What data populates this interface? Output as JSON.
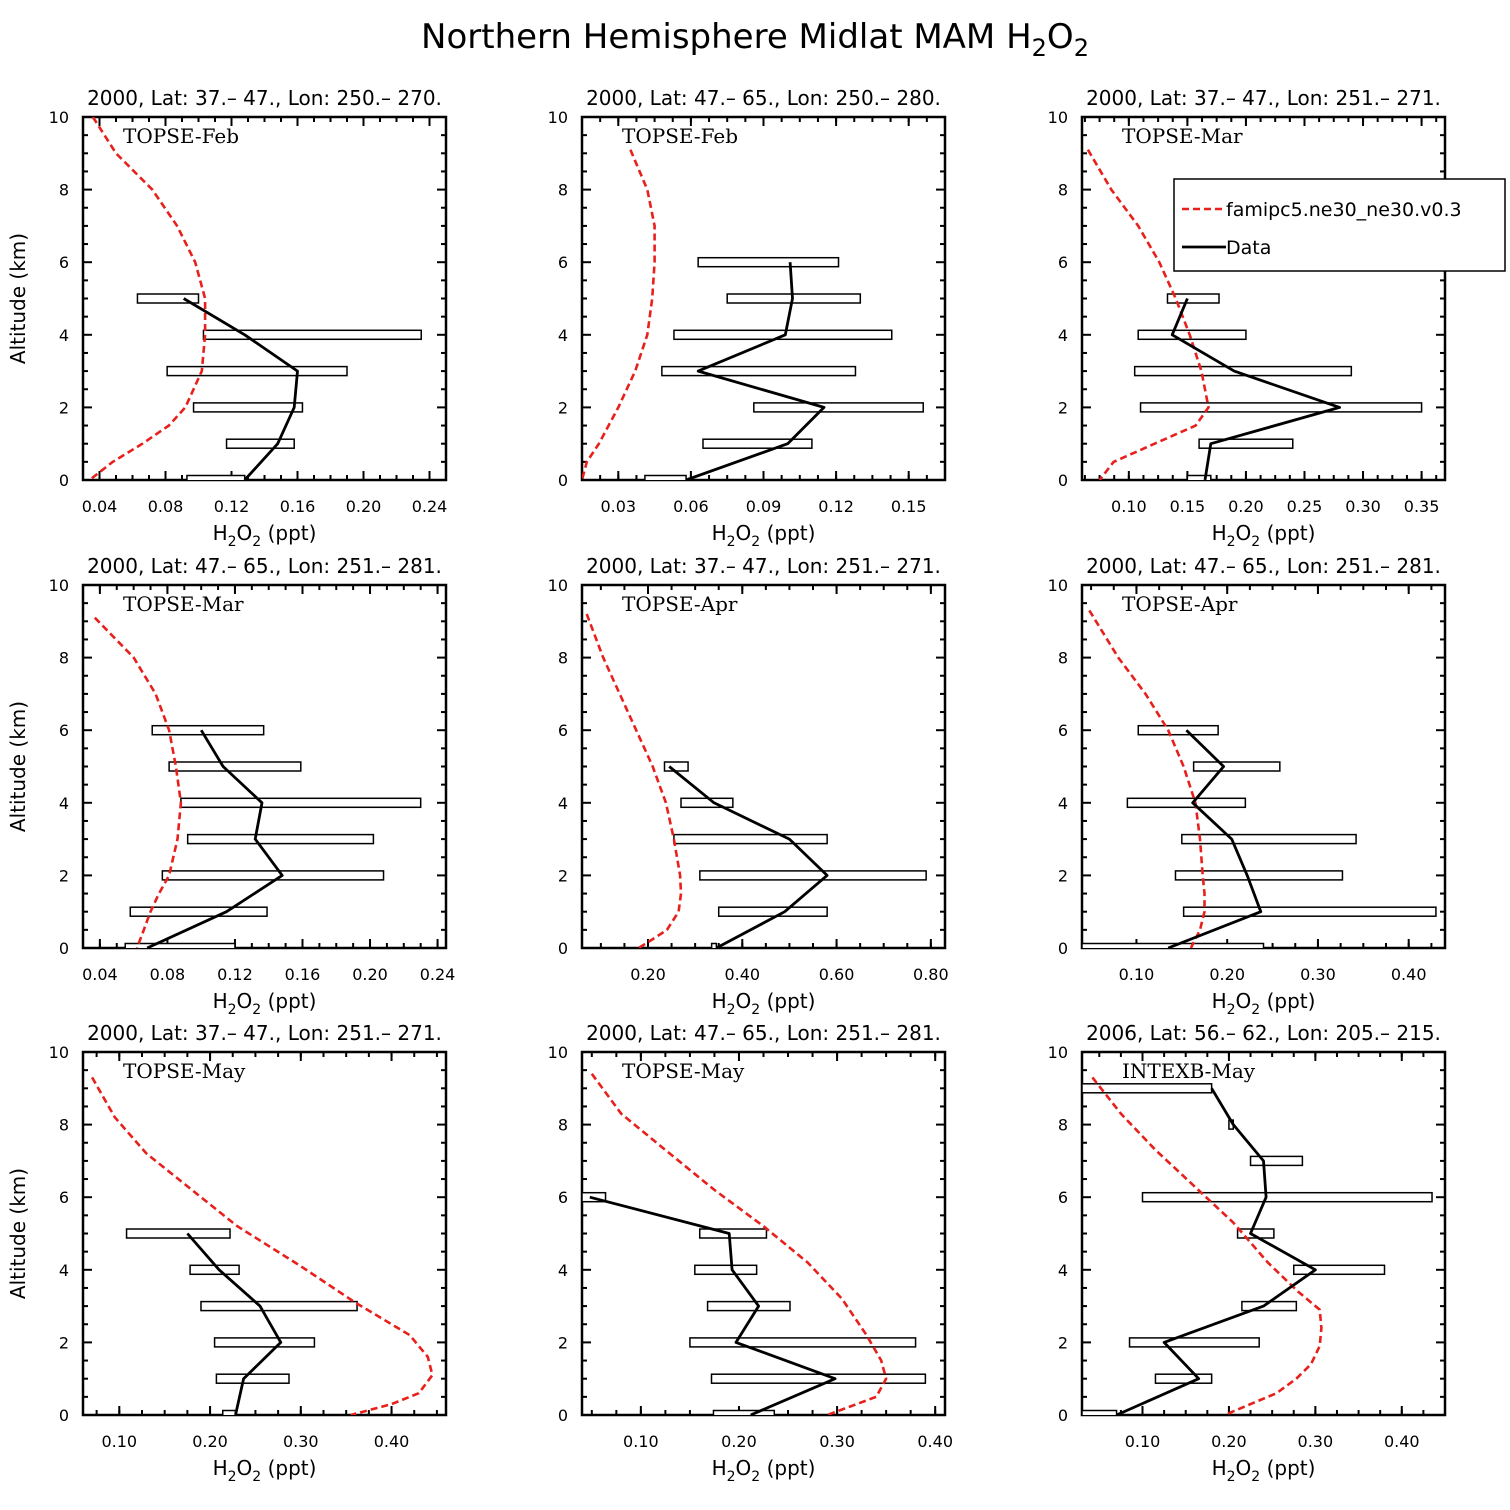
{
  "figure": {
    "title_main": "Northern Hemisphere Midlat MAM H",
    "title_sub1": "2",
    "title_mid": "O",
    "title_sub2": "2"
  },
  "colors": {
    "model": "#e8201c",
    "data": "#000000",
    "box_fill": "#ffffff"
  },
  "legend": {
    "panel_index": 2,
    "model_label": "famipc5.ne30_ne30.v0.3",
    "data_label": "Data"
  },
  "chart_data": [
    {
      "type": "line",
      "title": "2000, Lat: 37.– 47., Lon: 250.– 270.",
      "campaign": "TOPSE-Feb",
      "xlabel_main": "H",
      "xlabel_sub1": "2",
      "xlabel_mid": "O",
      "xlabel_sub2": "2",
      "xlabel_tail": " (ppt)",
      "ylabel": "Altitude (km)",
      "xlim": [
        0.03,
        0.25
      ],
      "ylim": [
        0,
        10
      ],
      "xticks": [
        0.04,
        0.08,
        0.12,
        0.16,
        0.2,
        0.24
      ],
      "xtick_labels": [
        "0.04",
        "0.08",
        "0.12",
        "0.16",
        "0.20",
        "0.24"
      ],
      "yticks": [
        0,
        2,
        4,
        6,
        8,
        10
      ],
      "ytick_labels": [
        "0",
        "2",
        "4",
        "6",
        "8",
        "10"
      ],
      "model": {
        "x": [
          0.036,
          0.05,
          0.072,
          0.087,
          0.098,
          0.104,
          0.104,
          0.102,
          0.092,
          0.082,
          0.066,
          0.048,
          0.034
        ],
        "y": [
          10,
          9,
          8,
          7,
          6,
          5,
          4,
          3,
          2,
          1.5,
          1,
          0.5,
          0
        ]
      },
      "data": {
        "altitude": [
          0,
          1,
          2,
          3,
          4,
          5
        ],
        "mean": [
          0.128,
          0.148,
          0.158,
          0.16,
          0.128,
          0.091
        ],
        "low": [
          0.093,
          0.117,
          0.097,
          0.081,
          0.103,
          0.063
        ],
        "high": [
          0.128,
          0.158,
          0.163,
          0.19,
          0.235,
          0.1
        ]
      }
    },
    {
      "type": "line",
      "title": "2000, Lat: 47.– 65., Lon: 250.– 280.",
      "campaign": "TOPSE-Feb",
      "xlabel_main": "H",
      "xlabel_sub1": "2",
      "xlabel_mid": "O",
      "xlabel_sub2": "2",
      "xlabel_tail": " (ppt)",
      "ylabel": "",
      "xlim": [
        0.015,
        0.165
      ],
      "ylim": [
        0,
        10
      ],
      "xticks": [
        0.03,
        0.06,
        0.09,
        0.12,
        0.15
      ],
      "xtick_labels": [
        "0.03",
        "0.06",
        "0.09",
        "0.12",
        "0.15"
      ],
      "yticks": [
        0,
        2,
        4,
        6,
        8,
        10
      ],
      "ytick_labels": [
        "0",
        "2",
        "4",
        "6",
        "8",
        "10"
      ],
      "model": {
        "x": [
          0.035,
          0.042,
          0.045,
          0.045,
          0.044,
          0.042,
          0.037,
          0.03,
          0.022,
          0.017,
          0.015
        ],
        "y": [
          9.1,
          8,
          7,
          6,
          5,
          4,
          3,
          2,
          1,
          0.5,
          0
        ]
      },
      "data": {
        "altitude": [
          0,
          1,
          2,
          3,
          4,
          5,
          6
        ],
        "mean": [
          0.058,
          0.1,
          0.115,
          0.063,
          0.099,
          0.102,
          0.101
        ],
        "low": [
          0.041,
          0.065,
          0.086,
          0.048,
          0.053,
          0.075,
          0.063
        ],
        "high": [
          0.058,
          0.11,
          0.156,
          0.128,
          0.143,
          0.13,
          0.121
        ]
      }
    },
    {
      "type": "line",
      "title": "2000, Lat: 37.– 47., Lon: 251.– 271.",
      "campaign": "TOPSE-Mar",
      "xlabel_main": "H",
      "xlabel_sub1": "2",
      "xlabel_mid": "O",
      "xlabel_sub2": "2",
      "xlabel_tail": " (ppt)",
      "ylabel": "",
      "xlim": [
        0.06,
        0.37
      ],
      "ylim": [
        0,
        10
      ],
      "xticks": [
        0.1,
        0.15,
        0.2,
        0.25,
        0.3,
        0.35
      ],
      "xtick_labels": [
        "0.10",
        "0.15",
        "0.20",
        "0.25",
        "0.30",
        "0.35"
      ],
      "yticks": [
        0,
        2,
        4,
        6,
        8,
        10
      ],
      "ytick_labels": [
        "0",
        "2",
        "4",
        "6",
        "8",
        "10"
      ],
      "model": {
        "x": [
          0.065,
          0.085,
          0.108,
          0.126,
          0.14,
          0.152,
          0.162,
          0.168,
          0.157,
          0.122,
          0.087,
          0.075
        ],
        "y": [
          9.1,
          8,
          7,
          6,
          5,
          4,
          3,
          2,
          1.5,
          1,
          0.5,
          0
        ]
      },
      "data": {
        "altitude": [
          0,
          1,
          2,
          3,
          4,
          5
        ],
        "mean": [
          0.165,
          0.17,
          0.28,
          0.19,
          0.137,
          0.15
        ],
        "low": [
          0.15,
          0.16,
          0.11,
          0.105,
          0.108,
          0.133
        ],
        "high": [
          0.17,
          0.24,
          0.35,
          0.29,
          0.2,
          0.177
        ]
      }
    },
    {
      "type": "line",
      "title": "2000, Lat: 47.– 65., Lon: 251.– 281.",
      "campaign": "TOPSE-Mar",
      "xlabel_main": "H",
      "xlabel_sub1": "2",
      "xlabel_mid": "O",
      "xlabel_sub2": "2",
      "xlabel_tail": " (ppt)",
      "ylabel": "Altitude (km)",
      "xlim": [
        0.03,
        0.245
      ],
      "ylim": [
        0,
        10
      ],
      "xticks": [
        0.04,
        0.08,
        0.12,
        0.16,
        0.2,
        0.24
      ],
      "xtick_labels": [
        "0.04",
        "0.08",
        "0.12",
        "0.16",
        "0.20",
        "0.24"
      ],
      "yticks": [
        0,
        2,
        4,
        6,
        8,
        10
      ],
      "ytick_labels": [
        "0",
        "2",
        "4",
        "6",
        "8",
        "10"
      ],
      "model": {
        "x": [
          0.037,
          0.06,
          0.073,
          0.081,
          0.085,
          0.088,
          0.086,
          0.081,
          0.075,
          0.07,
          0.066,
          0.062
        ],
        "y": [
          9.1,
          8,
          7,
          6,
          5,
          4,
          3,
          2,
          1.5,
          1,
          0.5,
          0
        ]
      },
      "data": {
        "altitude": [
          0,
          1,
          2,
          3,
          4,
          5,
          6
        ],
        "mean": [
          0.068,
          0.115,
          0.148,
          0.132,
          0.136,
          0.113,
          0.1
        ],
        "low": [
          0.055,
          0.058,
          0.077,
          0.092,
          0.088,
          0.081,
          0.071
        ],
        "high": [
          0.12,
          0.139,
          0.208,
          0.202,
          0.23,
          0.159,
          0.137
        ]
      }
    },
    {
      "type": "line",
      "title": "2000, Lat: 37.– 47., Lon: 251.– 271.",
      "campaign": "TOPSE-Apr",
      "xlabel_main": "H",
      "xlabel_sub1": "2",
      "xlabel_mid": "O",
      "xlabel_sub2": "2",
      "xlabel_tail": " (ppt)",
      "ylabel": "",
      "xlim": [
        0.06,
        0.83
      ],
      "ylim": [
        0,
        10
      ],
      "xticks": [
        0.2,
        0.4,
        0.6,
        0.8
      ],
      "xtick_labels": [
        "0.20",
        "0.40",
        "0.60",
        "0.80"
      ],
      "yticks": [
        0,
        2,
        4,
        6,
        8,
        10
      ],
      "ytick_labels": [
        "0",
        "2",
        "4",
        "6",
        "8",
        "10"
      ],
      "model": {
        "x": [
          0.07,
          0.105,
          0.14,
          0.175,
          0.21,
          0.238,
          0.255,
          0.268,
          0.27,
          0.265,
          0.24,
          0.205,
          0.18
        ],
        "y": [
          9.2,
          8,
          7,
          6,
          5,
          4,
          3,
          2,
          1.5,
          1,
          0.5,
          0.2,
          0
        ]
      },
      "data": {
        "altitude": [
          0,
          1,
          2,
          3,
          4,
          5
        ],
        "mean": [
          0.345,
          0.49,
          0.58,
          0.5,
          0.34,
          0.245
        ],
        "low": [
          0.335,
          0.35,
          0.31,
          0.255,
          0.27,
          0.235
        ],
        "high": [
          0.345,
          0.58,
          0.79,
          0.58,
          0.38,
          0.285
        ]
      }
    },
    {
      "type": "line",
      "title": "2000, Lat: 47.– 65., Lon: 251.– 281.",
      "campaign": "TOPSE-Apr",
      "xlabel_main": "H",
      "xlabel_sub1": "2",
      "xlabel_mid": "O",
      "xlabel_sub2": "2",
      "xlabel_tail": " (ppt)",
      "ylabel": "",
      "xlim": [
        0.04,
        0.44
      ],
      "ylim": [
        0,
        10
      ],
      "xticks": [
        0.1,
        0.2,
        0.3,
        0.4
      ],
      "xtick_labels": [
        "0.10",
        "0.20",
        "0.30",
        "0.40"
      ],
      "yticks": [
        0,
        2,
        4,
        6,
        8,
        10
      ],
      "ytick_labels": [
        "0",
        "2",
        "4",
        "6",
        "8",
        "10"
      ],
      "model": {
        "x": [
          0.048,
          0.08,
          0.11,
          0.135,
          0.152,
          0.165,
          0.17,
          0.173,
          0.175,
          0.175,
          0.17,
          0.16
        ],
        "y": [
          9.3,
          8,
          7,
          6,
          5,
          4,
          3,
          2,
          1.5,
          1,
          0.5,
          0
        ]
      },
      "data": {
        "altitude": [
          0,
          1,
          2,
          3,
          4,
          5,
          6
        ],
        "mean": [
          0.135,
          0.237,
          0.222,
          0.205,
          0.162,
          0.196,
          0.155
        ],
        "low": [
          0.04,
          0.152,
          0.143,
          0.15,
          0.09,
          0.163,
          0.102
        ],
        "high": [
          0.24,
          0.43,
          0.327,
          0.342,
          0.22,
          0.258,
          0.19
        ]
      }
    },
    {
      "type": "line",
      "title": "2000, Lat: 37.– 47., Lon: 251.– 271.",
      "campaign": "TOPSE-May",
      "xlabel_main": "H",
      "xlabel_sub1": "2",
      "xlabel_mid": "O",
      "xlabel_sub2": "2",
      "xlabel_tail": " (ppt)",
      "ylabel": "Altitude (km)",
      "xlim": [
        0.06,
        0.46
      ],
      "ylim": [
        0,
        10
      ],
      "xticks": [
        0.1,
        0.2,
        0.3,
        0.4
      ],
      "xtick_labels": [
        "0.10",
        "0.20",
        "0.30",
        "0.40"
      ],
      "yticks": [
        0,
        2,
        4,
        6,
        8,
        10
      ],
      "ytick_labels": [
        "0",
        "2",
        "4",
        "6",
        "8",
        "10"
      ],
      "model": {
        "x": [
          0.07,
          0.095,
          0.13,
          0.18,
          0.23,
          0.3,
          0.36,
          0.42,
          0.44,
          0.445,
          0.43,
          0.4,
          0.355
        ],
        "y": [
          9.3,
          8.2,
          7.2,
          6.2,
          5.2,
          4.1,
          3.1,
          2.2,
          1.6,
          1.1,
          0.6,
          0.3,
          0
        ]
      },
      "data": {
        "altitude": [
          0,
          1,
          2,
          3,
          4,
          5
        ],
        "mean": [
          0.228,
          0.237,
          0.278,
          0.255,
          0.21,
          0.175
        ],
        "low": [
          0.214,
          0.207,
          0.205,
          0.19,
          0.178,
          0.108
        ],
        "high": [
          0.228,
          0.287,
          0.315,
          0.362,
          0.232,
          0.222
        ]
      }
    },
    {
      "type": "line",
      "title": "2000, Lat: 47.– 65., Lon: 251.– 281.",
      "campaign": "TOPSE-May",
      "xlabel_main": "H",
      "xlabel_sub1": "2",
      "xlabel_mid": "O",
      "xlabel_sub2": "2",
      "xlabel_tail": " (ppt)",
      "ylabel": "",
      "xlim": [
        0.04,
        0.41
      ],
      "ylim": [
        0,
        10
      ],
      "xticks": [
        0.1,
        0.2,
        0.3,
        0.4
      ],
      "xtick_labels": [
        "0.10",
        "0.20",
        "0.30",
        "0.40"
      ],
      "yticks": [
        0,
        2,
        4,
        6,
        8,
        10
      ],
      "ytick_labels": [
        "0",
        "2",
        "4",
        "6",
        "8",
        "10"
      ],
      "model": {
        "x": [
          0.05,
          0.08,
          0.125,
          0.175,
          0.225,
          0.27,
          0.305,
          0.33,
          0.345,
          0.35,
          0.34,
          0.31,
          0.29
        ],
        "y": [
          9.4,
          8.3,
          7.3,
          6.2,
          5.2,
          4.2,
          3.2,
          2.2,
          1.5,
          1,
          0.5,
          0.2,
          0
        ]
      },
      "data": {
        "altitude": [
          0,
          1,
          2,
          3,
          4,
          5,
          6
        ],
        "mean": [
          0.212,
          0.298,
          0.197,
          0.22,
          0.193,
          0.19,
          0.048
        ],
        "low": [
          0.174,
          0.172,
          0.15,
          0.168,
          0.155,
          0.16,
          0.04
        ],
        "high": [
          0.236,
          0.39,
          0.38,
          0.252,
          0.218,
          0.228,
          0.064
        ]
      }
    },
    {
      "type": "line",
      "title": "2006, Lat: 56.– 62., Lon: 205.– 215.",
      "campaign": "INTEXB-May",
      "xlabel_main": "H",
      "xlabel_sub1": "2",
      "xlabel_mid": "O",
      "xlabel_sub2": "2",
      "xlabel_tail": " (ppt)",
      "ylabel": "",
      "xlim": [
        0.03,
        0.45
      ],
      "ylim": [
        0,
        10
      ],
      "xticks": [
        0.1,
        0.2,
        0.3,
        0.4
      ],
      "xtick_labels": [
        "0.10",
        "0.20",
        "0.30",
        "0.40"
      ],
      "yticks": [
        0,
        2,
        4,
        6,
        8,
        10
      ],
      "ytick_labels": [
        "0",
        "2",
        "4",
        "6",
        "8",
        "10"
      ],
      "model": {
        "x": [
          0.042,
          0.075,
          0.115,
          0.16,
          0.205,
          0.245,
          0.28,
          0.305,
          0.307,
          0.305,
          0.295,
          0.278,
          0.255,
          0.225,
          0.195
        ],
        "y": [
          9.3,
          8.3,
          7.3,
          6.3,
          5.3,
          4.2,
          3.4,
          2.9,
          2.4,
          1.9,
          1.4,
          1.0,
          0.6,
          0.3,
          0
        ]
      },
      "data": {
        "altitude": [
          0,
          1,
          2,
          3,
          4,
          5,
          6,
          7,
          8,
          9
        ],
        "mean": [
          0.07,
          0.165,
          0.125,
          0.24,
          0.3,
          0.225,
          0.243,
          0.24,
          0.205,
          0.18
        ],
        "low": [
          0.03,
          0.115,
          0.085,
          0.215,
          0.275,
          0.21,
          0.1,
          0.225,
          0.2,
          0.03
        ],
        "high": [
          0.07,
          0.18,
          0.235,
          0.278,
          0.38,
          0.252,
          0.435,
          0.285,
          0.205,
          0.18
        ]
      }
    }
  ]
}
